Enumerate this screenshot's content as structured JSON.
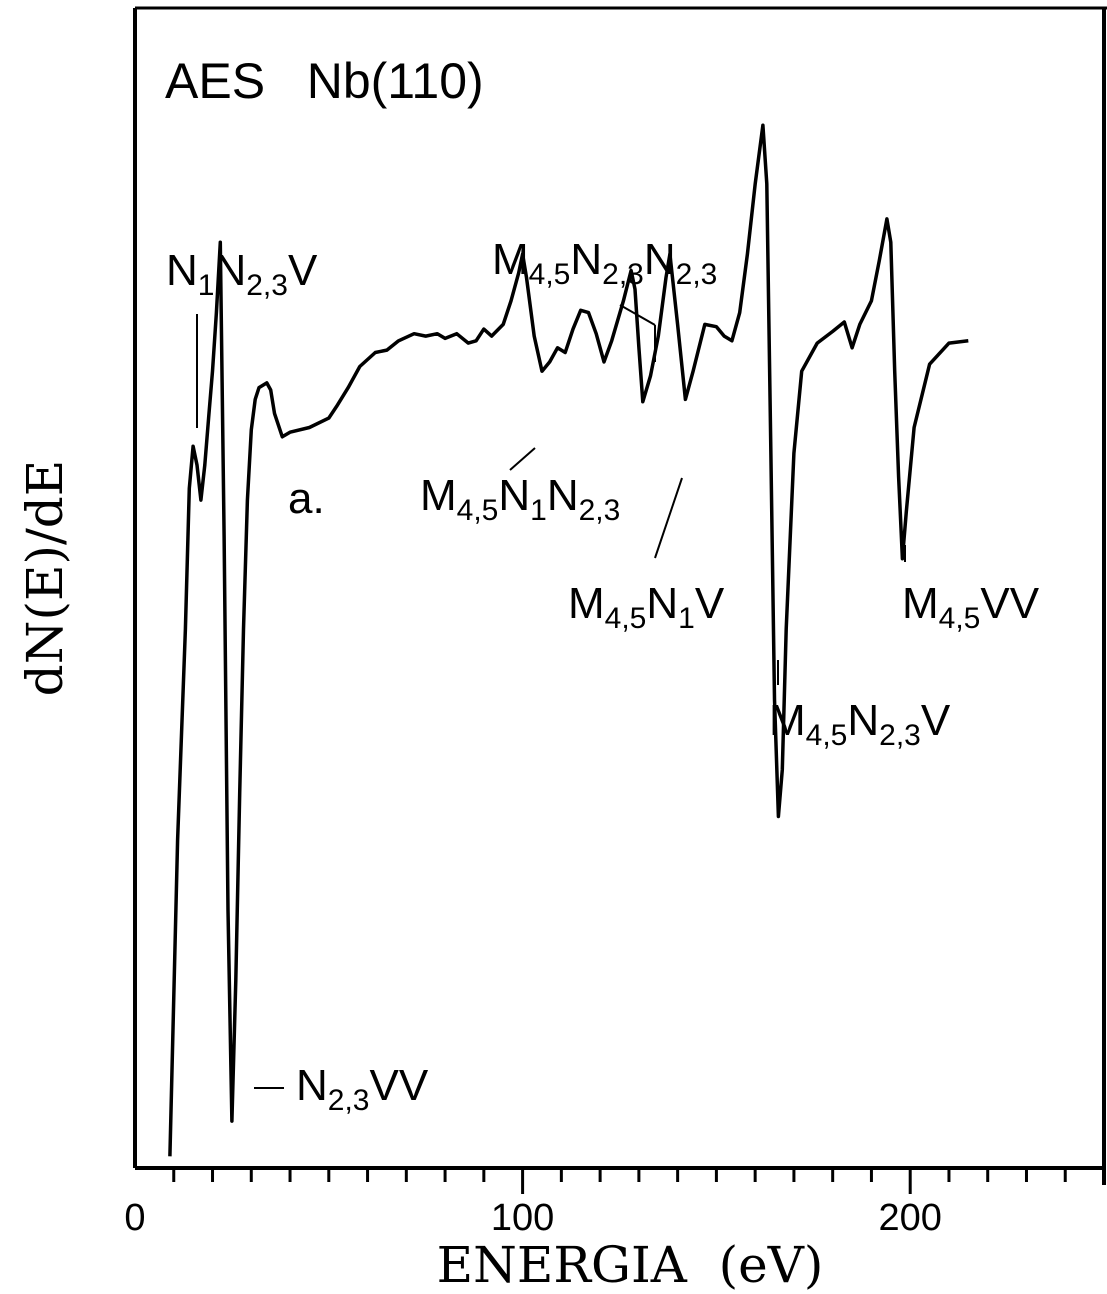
{
  "chart_data": {
    "type": "line",
    "title": "AES   Nb(110)",
    "xlabel": "ENERGIA  (eV)",
    "ylabel": "dN(E)/dE",
    "xlim": [
      0,
      250
    ],
    "ylim": [
      -2.6,
      2.35
    ],
    "x_ticks": [
      0,
      100,
      200
    ],
    "x_minor_step": 10,
    "grid": false,
    "curve_label": "a.",
    "series": [
      {
        "points": [
          [
            9,
            -2.55
          ],
          [
            11,
            -1.2
          ],
          [
            13,
            -0.3
          ],
          [
            14,
            0.3
          ],
          [
            15,
            0.48
          ],
          [
            16,
            0.4
          ],
          [
            17,
            0.25
          ],
          [
            18,
            0.4
          ],
          [
            19,
            0.6
          ],
          [
            20,
            0.8
          ],
          [
            21,
            1.05
          ],
          [
            22,
            1.35
          ],
          [
            23,
            0.1
          ],
          [
            24,
            -1.5
          ],
          [
            25,
            -2.4
          ],
          [
            26,
            -1.8
          ],
          [
            27,
            -1.0
          ],
          [
            28,
            -0.3
          ],
          [
            29,
            0.25
          ],
          [
            30,
            0.55
          ],
          [
            31,
            0.68
          ],
          [
            32,
            0.73
          ],
          [
            34,
            0.75
          ],
          [
            35,
            0.72
          ],
          [
            36,
            0.62
          ],
          [
            38,
            0.52
          ],
          [
            40,
            0.54
          ],
          [
            45,
            0.56
          ],
          [
            50,
            0.6
          ],
          [
            52,
            0.65
          ],
          [
            55,
            0.73
          ],
          [
            58,
            0.82
          ],
          [
            62,
            0.88
          ],
          [
            65,
            0.89
          ],
          [
            68,
            0.93
          ],
          [
            72,
            0.96
          ],
          [
            75,
            0.95
          ],
          [
            78,
            0.96
          ],
          [
            80,
            0.94
          ],
          [
            83,
            0.96
          ],
          [
            86,
            0.92
          ],
          [
            88,
            0.93
          ],
          [
            90,
            0.98
          ],
          [
            92,
            0.95
          ],
          [
            95,
            1.0
          ],
          [
            97,
            1.1
          ],
          [
            99,
            1.22
          ],
          [
            100,
            1.3
          ],
          [
            101,
            1.2
          ],
          [
            103,
            0.95
          ],
          [
            105,
            0.8
          ],
          [
            107,
            0.84
          ],
          [
            109,
            0.9
          ],
          [
            111,
            0.88
          ],
          [
            113,
            0.98
          ],
          [
            115,
            1.06
          ],
          [
            117,
            1.05
          ],
          [
            119,
            0.96
          ],
          [
            121,
            0.84
          ],
          [
            123,
            0.93
          ],
          [
            126,
            1.1
          ],
          [
            128,
            1.23
          ],
          [
            129,
            1.15
          ],
          [
            130,
            0.9
          ],
          [
            131,
            0.67
          ],
          [
            133,
            0.78
          ],
          [
            135,
            0.95
          ],
          [
            137,
            1.2
          ],
          [
            138,
            1.3
          ],
          [
            140,
            1.0
          ],
          [
            142,
            0.68
          ],
          [
            144,
            0.8
          ],
          [
            147,
            1.0
          ],
          [
            150,
            0.99
          ],
          [
            152,
            0.95
          ],
          [
            154,
            0.93
          ],
          [
            156,
            1.05
          ],
          [
            158,
            1.3
          ],
          [
            160,
            1.6
          ],
          [
            162,
            1.85
          ],
          [
            163,
            1.6
          ],
          [
            164,
            0.5
          ],
          [
            165,
            -0.6
          ],
          [
            166,
            -1.1
          ],
          [
            167,
            -0.9
          ],
          [
            168,
            -0.3
          ],
          [
            170,
            0.45
          ],
          [
            172,
            0.8
          ],
          [
            176,
            0.92
          ],
          [
            180,
            0.97
          ],
          [
            183,
            1.01
          ],
          [
            185,
            0.9
          ],
          [
            187,
            1.0
          ],
          [
            190,
            1.1
          ],
          [
            192,
            1.27
          ],
          [
            194,
            1.45
          ],
          [
            195,
            1.35
          ],
          [
            196,
            0.8
          ],
          [
            197,
            0.35
          ],
          [
            198,
            0.0
          ],
          [
            199,
            0.2
          ],
          [
            201,
            0.56
          ],
          [
            205,
            0.83
          ],
          [
            210,
            0.92
          ],
          [
            215,
            0.93
          ]
        ]
      }
    ],
    "annotations": [
      {
        "text_parts": [
          [
            "N",
            ""
          ],
          [
            "1",
            "sub"
          ],
          [
            "N",
            ""
          ],
          [
            "2,3",
            "sub"
          ],
          [
            "V",
            ""
          ]
        ]
      },
      {
        "text_parts": [
          [
            "M",
            ""
          ],
          [
            "4,5",
            "sub"
          ],
          [
            "N",
            ""
          ],
          [
            "2,3",
            "sub"
          ],
          [
            "N",
            ""
          ],
          [
            "2,3",
            "sub"
          ]
        ]
      },
      {
        "text_parts": [
          [
            "M",
            ""
          ],
          [
            "4,5",
            "sub"
          ],
          [
            "N",
            ""
          ],
          [
            "1",
            "sub"
          ],
          [
            "N",
            ""
          ],
          [
            "2,3",
            "sub"
          ]
        ]
      },
      {
        "text_parts": [
          [
            "M",
            ""
          ],
          [
            "4,5",
            "sub"
          ],
          [
            "N",
            ""
          ],
          [
            "1",
            "sub"
          ],
          [
            "V",
            ""
          ]
        ]
      },
      {
        "text_parts": [
          [
            "M",
            ""
          ],
          [
            "4,5",
            "sub"
          ],
          [
            "VV",
            ""
          ]
        ]
      },
      {
        "text_parts": [
          [
            "M",
            ""
          ],
          [
            "4,5",
            "sub"
          ],
          [
            "N",
            ""
          ],
          [
            "2,3",
            "sub"
          ],
          [
            "V",
            ""
          ]
        ]
      },
      {
        "text_parts": [
          [
            "N",
            ""
          ],
          [
            "2,3",
            "sub"
          ],
          [
            "VV",
            ""
          ]
        ]
      }
    ]
  }
}
